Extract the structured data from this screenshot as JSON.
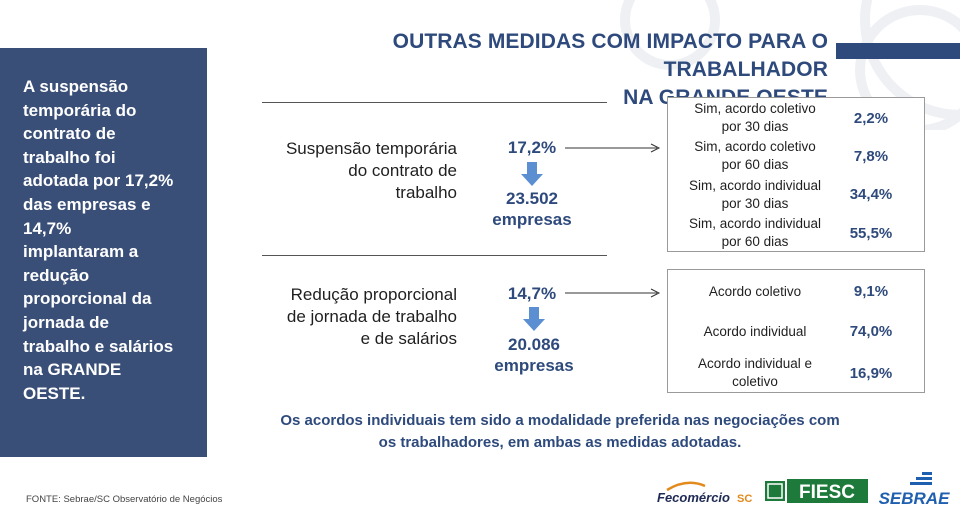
{
  "title": {
    "line1": "OUTRAS MEDIDAS COM IMPACTO PARA O TRABALHADOR",
    "line2": "NA GRANDE OESTE"
  },
  "sidebar": {
    "lines": [
      "A  suspensão",
      "temporária do",
      "contrato de",
      "trabalho foi",
      "adotada por 17,2%",
      "das empresas e",
      "14,7%",
      "implantaram a",
      "redução",
      "proporcional da",
      "jornada de",
      "trabalho e salários",
      "na GRANDE",
      "OESTE."
    ]
  },
  "measures": [
    {
      "name_lines": [
        "Suspensão temporária",
        "do contrato de",
        "trabalho"
      ],
      "pct": "17,2%",
      "count": "23.502",
      "count_unit": "empresas",
      "options": [
        {
          "label_lines": [
            "Sim, acordo coletivo",
            "por 30 dias"
          ],
          "value": "2,2%"
        },
        {
          "label_lines": [
            "Sim, acordo coletivo",
            "por 60 dias"
          ],
          "value": "7,8%"
        },
        {
          "label_lines": [
            "Sim, acordo individual",
            "por 30 dias"
          ],
          "value": "34,4%"
        },
        {
          "label_lines": [
            "Sim, acordo individual",
            "por 60 dias"
          ],
          "value": "55,5%"
        }
      ]
    },
    {
      "name_lines": [
        "Redução proporcional",
        "de jornada de trabalho",
        "e de salários"
      ],
      "pct": "14,7%",
      "count": "20.086",
      "count_unit": "empresas",
      "options": [
        {
          "label_lines": [
            "Acordo coletivo"
          ],
          "value": "9,1%"
        },
        {
          "label_lines": [
            "Acordo individual"
          ],
          "value": "74,0%"
        },
        {
          "label_lines": [
            "Acordo individual e",
            "coletivo"
          ],
          "value": "16,9%"
        }
      ]
    }
  ],
  "note": {
    "line1": "Os acordos individuais tem sido a modalidade preferida nas negociações com",
    "line2": "os trabalhadores, em ambas as medidas adotadas."
  },
  "source": "FONTE: Sebrae/SC Observatório de Negócios",
  "logos": {
    "fecomercio": "Fecomércio",
    "fecomercio_suffix": "SC",
    "fiesc": "FIESC",
    "sebrae": "SEBRAE"
  },
  "colors": {
    "panel": "#3a4f78",
    "accent": "#2e4a7c",
    "arrow": "#5b8fd1",
    "fiesc_green": "#1d7a3a",
    "fecomercio_orange": "#e28a1c",
    "sebrae_blue": "#1f5fb0"
  }
}
